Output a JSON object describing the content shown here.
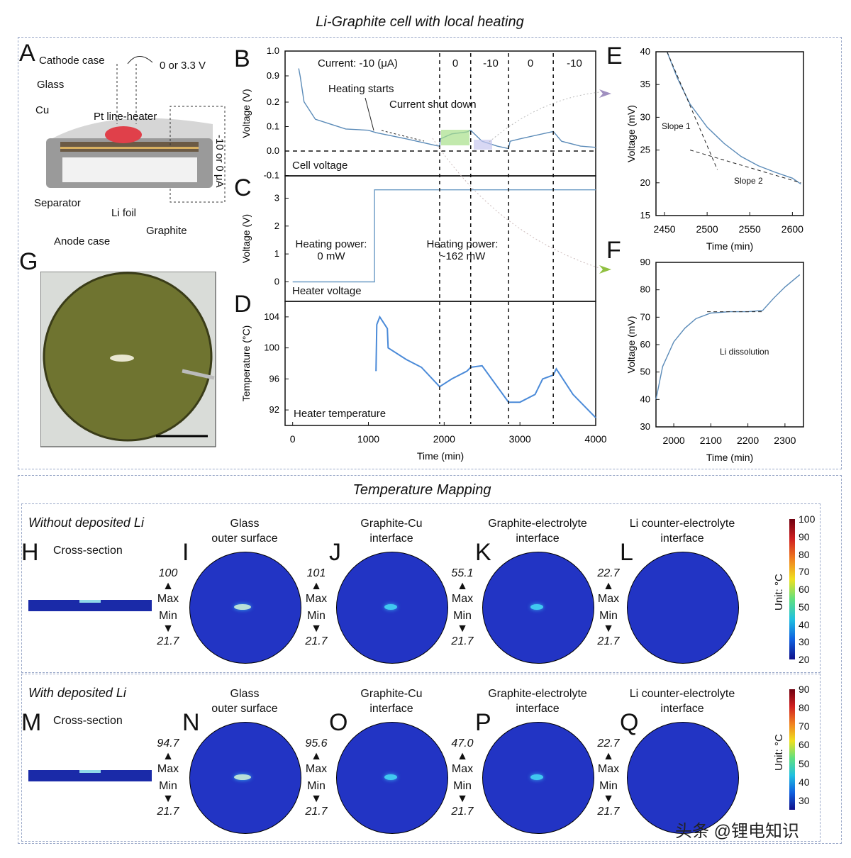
{
  "header": {
    "title": "Li-Graphite cell with local heating",
    "mapping_title": "Temperature Mapping"
  },
  "panel_letters": {
    "A": "A",
    "B": "B",
    "C": "C",
    "D": "D",
    "E": "E",
    "F": "F",
    "G": "G",
    "H": "H",
    "I": "I",
    "J": "J",
    "K": "K",
    "L": "L",
    "M": "M",
    "N": "N",
    "O": "O",
    "P": "P",
    "Q": "Q"
  },
  "schematic": {
    "labels": [
      "Cathode case",
      "Glass",
      "Cu",
      "Pt line-heater",
      "Separator",
      "Li foil",
      "Anode case",
      "Graphite"
    ],
    "heater_voltage": "0 or 3.3 V",
    "cell_current": "-10 or 0 μA",
    "heater_color": "#e0404a"
  },
  "chart_data": [
    {
      "id": "B",
      "type": "line",
      "ylabel": "Voltage (V)",
      "ylim": [
        -0.1,
        1.0
      ],
      "axis_break": [
        0.2,
        0.9
      ],
      "yticks": [
        "1.0",
        "0.9",
        "0.2",
        "0.1",
        "0.0",
        "-0.1"
      ],
      "xlim": [
        -100,
        4000
      ],
      "annotations": {
        "current_label": "Current: -10 (μA)",
        "segments": [
          "0",
          "-10",
          "0",
          "-10"
        ],
        "heating_starts": "Heating starts",
        "current_shut_down": "Current shut down",
        "corner": "Cell voltage"
      },
      "dividers": [
        1940,
        2350,
        2850,
        3440
      ],
      "series": [
        {
          "x": [
            80,
            100,
            150,
            300,
            500,
            700,
            1000,
            1100,
            1500,
            1900,
            1940,
            1950,
            2100,
            2300,
            2350,
            2500,
            2700,
            2850,
            2870,
            3000,
            3440,
            3550,
            3800,
            4000
          ],
          "y": [
            0.93,
            0.88,
            0.21,
            0.13,
            0.11,
            0.09,
            0.085,
            0.075,
            0.05,
            0.022,
            0.02,
            0.05,
            0.07,
            0.078,
            0.085,
            0.04,
            0.02,
            0.01,
            0.04,
            0.05,
            0.08,
            0.04,
            0.02,
            0.015
          ]
        }
      ],
      "color": "#5b8bb8"
    },
    {
      "id": "C",
      "type": "line",
      "ylabel": "Voltage (V)",
      "ylim": [
        -0.7,
        3.8
      ],
      "yticks": [
        "3",
        "2",
        "1",
        "0"
      ],
      "xlim": [
        -100,
        4000
      ],
      "annotations": {
        "left": "Heating power:\n0 mW",
        "right": "Heating power:\n~162 mW",
        "corner": "Heater voltage"
      },
      "series": [
        {
          "x": [
            0,
            1080,
            1080,
            4000
          ],
          "y": [
            0,
            0,
            3.3,
            3.3
          ]
        }
      ],
      "color": "#6a9ac4"
    },
    {
      "id": "D",
      "type": "line",
      "xlabel": "Time (min)",
      "ylabel": "Temperature (°C)",
      "ylim": [
        90,
        106
      ],
      "yticks": [
        "104",
        "100",
        "96",
        "92"
      ],
      "xticks": [
        "0",
        "1000",
        "2000",
        "3000",
        "4000"
      ],
      "xlim": [
        -100,
        4000
      ],
      "annotations": {
        "corner": "Heater temperature"
      },
      "series": [
        {
          "x": [
            1100,
            1110,
            1150,
            1250,
            1260,
            1500,
            1700,
            1940,
            2100,
            2300,
            2350,
            2500,
            2850,
            3000,
            3200,
            3300,
            3440,
            3480,
            3700,
            4000
          ],
          "y": [
            97,
            103,
            104,
            102.5,
            100,
            98.5,
            97.5,
            95,
            96,
            97,
            97.5,
            97.7,
            93,
            93,
            94,
            96,
            96.5,
            97.3,
            94,
            91
          ]
        }
      ],
      "color": "#4a8ad8"
    },
    {
      "id": "E",
      "type": "line",
      "xlabel": "Time (min)",
      "ylabel": "Voltage (mV)",
      "xlim": [
        2440,
        2613
      ],
      "ylim": [
        15,
        40
      ],
      "yticks": [
        "40",
        "35",
        "30",
        "25",
        "20",
        "15"
      ],
      "xticks": [
        "2450",
        "2500",
        "2550",
        "2600"
      ],
      "annotations": {
        "slope1": "Slope 1",
        "slope2": "Slope 2"
      },
      "series": [
        {
          "x": [
            2453,
            2465,
            2480,
            2500,
            2520,
            2540,
            2560,
            2580,
            2600,
            2610
          ],
          "y": [
            40,
            36,
            32,
            28.5,
            26,
            24,
            22.6,
            21.6,
            20.7,
            19.8
          ]
        }
      ],
      "fits": [
        {
          "x": [
            2453,
            2512
          ],
          "y": [
            40,
            22
          ]
        },
        {
          "x": [
            2480,
            2610
          ],
          "y": [
            25,
            20
          ]
        }
      ],
      "color": "#5b8bb8"
    },
    {
      "id": "F",
      "type": "line",
      "xlabel": "Time (min)",
      "ylabel": "Voltage (mV)",
      "xlim": [
        1952,
        2350
      ],
      "ylim": [
        30,
        90
      ],
      "yticks": [
        "90",
        "80",
        "70",
        "60",
        "50",
        "40",
        "30"
      ],
      "xticks": [
        "2000",
        "2100",
        "2200",
        "2300"
      ],
      "annotations": {
        "li_dissolution": "Li dissolution"
      },
      "series": [
        {
          "x": [
            1952,
            1970,
            2000,
            2030,
            2060,
            2100,
            2150,
            2200,
            2240,
            2270,
            2300,
            2340
          ],
          "y": [
            40,
            52,
            61,
            66,
            69.5,
            71.5,
            72,
            72,
            72.5,
            77,
            81,
            85.5
          ]
        }
      ],
      "fits": [
        {
          "x": [
            2090,
            2240
          ],
          "y": [
            72,
            72
          ]
        }
      ],
      "color": "#5b8bb8"
    }
  ],
  "mapping": {
    "rows": [
      {
        "title": "Without deposited Li",
        "cross_section": "Cross-section",
        "maps": [
          {
            "letter": "I",
            "title1": "Glass",
            "title2": "outer surface",
            "max": "100",
            "min": "21.7"
          },
          {
            "letter": "J",
            "title1": "Graphite-Cu",
            "title2": "interface",
            "max": "101",
            "min": "21.7"
          },
          {
            "letter": "K",
            "title1": "Graphite-electrolyte",
            "title2": "interface",
            "max": "55.1",
            "min": "21.7"
          },
          {
            "letter": "L",
            "title1": "Li counter-electrolyte",
            "title2": "interface",
            "max": "22.7",
            "min": "21.7"
          }
        ],
        "colorbar": {
          "unit": "Unit: °C",
          "ticks": [
            "100",
            "90",
            "80",
            "70",
            "60",
            "50",
            "40",
            "30",
            "20"
          ]
        }
      },
      {
        "title": "With deposited Li",
        "cross_section": "Cross-section",
        "maps": [
          {
            "letter": "N",
            "title1": "Glass",
            "title2": "outer surface",
            "max": "94.7",
            "min": "21.7"
          },
          {
            "letter": "O",
            "title1": "Graphite-Cu",
            "title2": "interface",
            "max": "95.6",
            "min": "21.7"
          },
          {
            "letter": "P",
            "title1": "Graphite-electrolyte",
            "title2": "interface",
            "max": "47.0",
            "min": "21.7"
          },
          {
            "letter": "Q",
            "title1": "Li counter-electrolyte",
            "title2": "interface",
            "max": "22.7",
            "min": "21.7"
          }
        ],
        "colorbar": {
          "unit": "Unit: °C",
          "ticks": [
            "90",
            "80",
            "70",
            "60",
            "50",
            "40",
            "30"
          ]
        }
      }
    ],
    "max_label": "Max",
    "min_label": "Min",
    "map_color": "#2234c4"
  },
  "watermark": "头条 @锂电知识"
}
